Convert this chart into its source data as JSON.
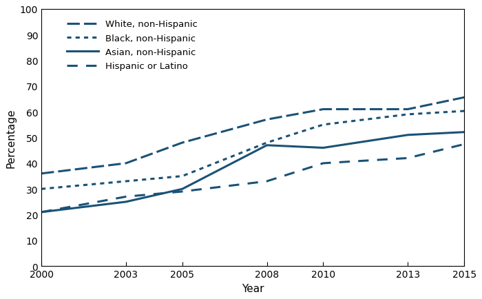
{
  "years": [
    2000,
    2003,
    2005,
    2008,
    2010,
    2013,
    2015
  ],
  "white_non_hispanic": [
    36,
    40,
    48,
    57,
    61,
    61,
    65.6
  ],
  "black_non_hispanic": [
    30,
    33,
    35,
    48,
    55,
    59,
    60.3
  ],
  "asian_non_hispanic": [
    21,
    25,
    30,
    47,
    46,
    51,
    52.1
  ],
  "hispanic_or_latino": [
    21,
    27,
    29,
    33,
    40,
    42,
    47.4
  ],
  "color": "#1a5276",
  "ylabel": "Percentage",
  "xlabel": "Year",
  "ylim": [
    0,
    100
  ],
  "yticks": [
    0,
    10,
    20,
    30,
    40,
    50,
    60,
    70,
    80,
    90,
    100
  ],
  "xticks": [
    2000,
    2003,
    2005,
    2008,
    2010,
    2013,
    2015
  ],
  "legend_labels": [
    "White, non-Hispanic",
    "Black, non-Hispanic",
    "Asian, non-Hispanic",
    "Hispanic or Latino"
  ]
}
